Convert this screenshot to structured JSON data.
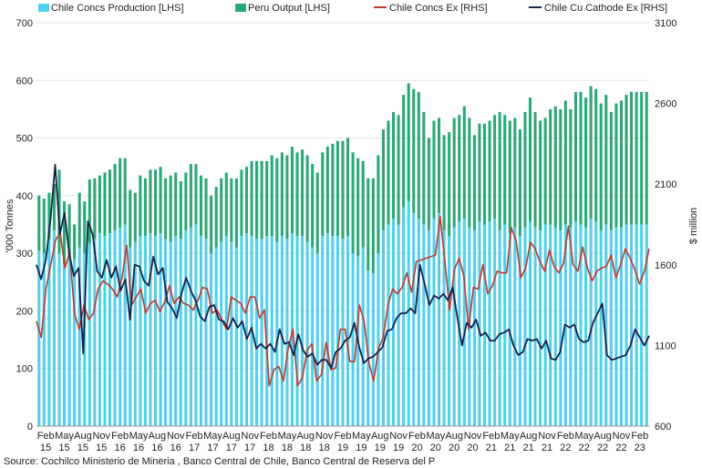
{
  "chart_data": {
    "type": "bar",
    "legend": {
      "placement": "top",
      "items": [
        {
          "label": "Chile Concs Production [LHS]",
          "color": "#4fd0ee",
          "kind": "box"
        },
        {
          "label": "Peru Output [LHS]",
          "color": "#2aa876",
          "kind": "box"
        },
        {
          "label": "Chile Concs Ex [RHS]",
          "color": "#c0392b",
          "kind": "line"
        },
        {
          "label": "Chile Cu Cathode Ex [RHS]",
          "color": "#14224a",
          "kind": "line"
        }
      ]
    },
    "ylabel_left": "'000 Tonnes",
    "ylabel_right": "$ million",
    "y_left": {
      "min": 0,
      "max": 700,
      "ticks": [
        "0",
        "100",
        "200",
        "300",
        "400",
        "500",
        "600",
        "700"
      ]
    },
    "y_right": {
      "min": 600,
      "max": 3100,
      "ticks": [
        "600",
        "1100",
        "1600",
        "2100",
        "2600",
        "3100"
      ]
    },
    "x_tick_labels": [
      [
        "Feb",
        "15"
      ],
      [
        "May",
        "15"
      ],
      [
        "Aug",
        "15"
      ],
      [
        "Nov",
        "15"
      ],
      [
        "Feb",
        "16"
      ],
      [
        "May",
        "16"
      ],
      [
        "Aug",
        "16"
      ],
      [
        "Nov",
        "16"
      ],
      [
        "Feb",
        "17"
      ],
      [
        "May",
        "17"
      ],
      [
        "Aug",
        "17"
      ],
      [
        "Nov",
        "17"
      ],
      [
        "Feb",
        "18"
      ],
      [
        "May",
        "18"
      ],
      [
        "Aug",
        "18"
      ],
      [
        "Nov",
        "18"
      ],
      [
        "Feb",
        "19"
      ],
      [
        "May",
        "19"
      ],
      [
        "Aug",
        "19"
      ],
      [
        "Nov",
        "19"
      ],
      [
        "Feb",
        "20"
      ],
      [
        "May",
        "20"
      ],
      [
        "Aug",
        "20"
      ],
      [
        "Nov",
        "20"
      ],
      [
        "Feb",
        "21"
      ],
      [
        "May",
        "21"
      ],
      [
        "Aug",
        "21"
      ],
      [
        "Nov",
        "21"
      ],
      [
        "Feb",
        "22"
      ],
      [
        "May",
        "22"
      ],
      [
        "Aug",
        "22"
      ],
      [
        "Nov",
        "22"
      ],
      [
        "Feb",
        "23"
      ]
    ],
    "series": [
      {
        "name": "Chile Concs Production [LHS]",
        "axis": "left",
        "values": [
          305,
          300,
          325,
          340,
          300,
          280,
          300,
          290,
          310,
          300,
          318,
          325,
          335,
          330,
          335,
          340,
          345,
          350,
          310,
          320,
          330,
          330,
          335,
          330,
          335,
          325,
          320,
          330,
          325,
          340,
          345,
          350,
          330,
          325,
          300,
          310,
          320,
          330,
          320,
          310,
          330,
          335,
          330,
          325,
          325,
          330,
          330,
          320,
          330,
          325,
          335,
          330,
          330,
          320,
          310,
          300,
          330,
          335,
          330,
          330,
          325,
          330,
          300,
          295,
          310,
          270,
          265,
          300,
          340,
          350,
          360,
          350,
          380,
          390,
          370,
          360,
          350,
          340,
          360,
          370,
          340,
          330,
          345,
          355,
          360,
          345,
          340,
          355,
          350,
          355,
          360,
          340,
          350,
          335,
          345,
          330,
          345,
          355,
          345,
          340,
          350,
          350,
          345,
          340,
          350,
          345,
          355,
          350,
          345,
          360,
          355,
          340,
          350,
          340,
          345,
          345,
          350,
          350,
          350,
          350,
          350
        ]
      },
      {
        "name": "Peru Output [LHS]",
        "axis": "left",
        "values": [
          95,
          95,
          80,
          80,
          145,
          110,
          85,
          60,
          95,
          90,
          110,
          105,
          100,
          110,
          110,
          115,
          120,
          115,
          100,
          85,
          105,
          100,
          110,
          115,
          115,
          105,
          115,
          110,
          100,
          100,
          110,
          105,
          105,
          105,
          100,
          105,
          110,
          110,
          110,
          120,
          115,
          115,
          130,
          135,
          135,
          130,
          140,
          145,
          145,
          145,
          150,
          145,
          150,
          150,
          145,
          140,
          145,
          150,
          160,
          165,
          170,
          170,
          175,
          170,
          150,
          160,
          165,
          170,
          175,
          180,
          185,
          190,
          195,
          205,
          215,
          220,
          195,
          160,
          170,
          165,
          165,
          180,
          190,
          185,
          195,
          190,
          165,
          170,
          175,
          175,
          180,
          205,
          190,
          195,
          190,
          185,
          200,
          215,
          200,
          190,
          185,
          200,
          210,
          210,
          215,
          205,
          225,
          230,
          225,
          230,
          230,
          220,
          225,
          205,
          215,
          220,
          225,
          230,
          230,
          230,
          230
        ]
      },
      {
        "name": "Chile Concs Ex [RHS]",
        "axis": "right",
        "values": [
          1250,
          1150,
          1450,
          1600,
          1750,
          1800,
          1580,
          1680,
          1300,
          1200,
          1350,
          1260,
          1300,
          1450,
          1500,
          1480,
          1450,
          1400,
          1520,
          1720,
          1350,
          1400,
          1450,
          1300,
          1360,
          1380,
          1310,
          1370,
          1470,
          1360,
          1400,
          1360,
          1350,
          1320,
          1380,
          1460,
          1450,
          1300,
          1320,
          1260,
          1200,
          1400,
          1380,
          1360,
          1300,
          1400,
          1400,
          1270,
          1320,
          850,
          950,
          970,
          880,
          1080,
          1200,
          850,
          900,
          1070,
          1110,
          880,
          920,
          1120,
          950,
          960,
          1200,
          1200,
          1000,
          1000,
          1350,
          1250,
          990,
          880,
          1080,
          1150,
          1350,
          1450,
          1420,
          1460,
          1550,
          1430,
          1620,
          1630,
          1640,
          1650,
          1660,
          1900,
          1620,
          1320,
          1570,
          1640,
          1530,
          1200,
          1460,
          1450,
          1600,
          1420,
          1470,
          1560,
          1550,
          1550,
          1830,
          1750,
          1520,
          1580,
          1740,
          1700,
          1620,
          1560,
          1690,
          1590,
          1550,
          1610,
          1840,
          1600,
          1560,
          1710,
          1580,
          1500,
          1560,
          1580,
          1590,
          1660,
          1520,
          1600,
          1700,
          1640,
          1570,
          1480,
          1560,
          1700
        ]
      },
      {
        "name": "Chile Cu Cathode Ex [RHS]",
        "axis": "right",
        "values": [
          1600,
          1510,
          1630,
          1880,
          2220,
          1790,
          1920,
          1670,
          1530,
          1580,
          1050,
          1870,
          1790,
          1560,
          1520,
          1630,
          1520,
          1590,
          1440,
          1510,
          1260,
          1600,
          1590,
          1500,
          1470,
          1650,
          1540,
          1580,
          1370,
          1330,
          1270,
          1420,
          1520,
          1440,
          1380,
          1280,
          1250,
          1340,
          1350,
          1260,
          1250,
          1200,
          1270,
          1210,
          1250,
          1140,
          1210,
          1080,
          1110,
          1080,
          1110,
          1060,
          1200,
          1110,
          1120,
          1040,
          1170,
          1070,
          1030,
          1050,
          980,
          1010,
          1010,
          960,
          1060,
          1080,
          1130,
          1150,
          1240,
          1090,
          990,
          1020,
          1030,
          1060,
          1090,
          1190,
          1200,
          1270,
          1300,
          1300,
          1330,
          1300,
          1600,
          1480,
          1350,
          1410,
          1390,
          1420,
          1380,
          1460,
          1270,
          1100,
          1240,
          1210,
          1260,
          1160,
          1180,
          1130,
          1130,
          1170,
          1180,
          1200,
          1100,
          1040,
          1060,
          1140,
          1130,
          1140,
          1080,
          1130,
          1020,
          1010,
          1060,
          1230,
          1210,
          1230,
          1140,
          1120,
          1130,
          1240,
          1300,
          1360,
          1040,
          1010,
          1020,
          1030,
          1040,
          1100,
          1200,
          1150,
          1100,
          1160
        ]
      }
    ],
    "source": "Source: Cochilco Ministerio de Mineria , Banco Central de Chile, Banco Central de Reserva del P"
  }
}
